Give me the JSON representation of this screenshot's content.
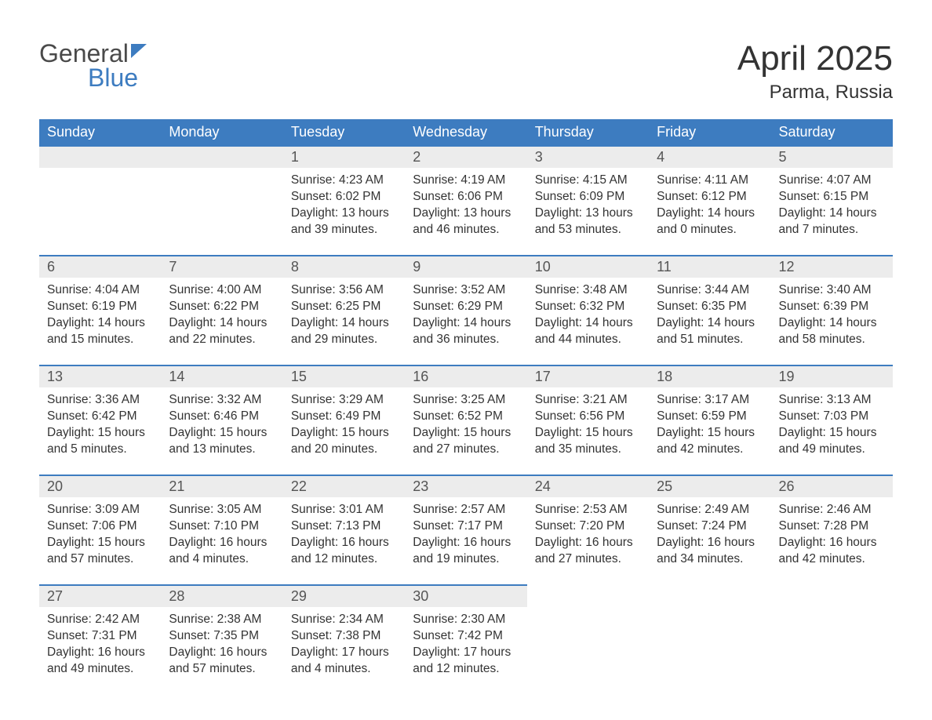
{
  "logo": {
    "line1": "General",
    "line2": "Blue"
  },
  "title": "April 2025",
  "location": "Parma, Russia",
  "colors": {
    "header_bg": "#3d7cc0",
    "header_text": "#ffffff",
    "daynum_bg": "#ececec",
    "daynum_border": "#3d7cc0",
    "text": "#333333",
    "logo_gray": "#4a4a4a",
    "logo_blue": "#3d7cc0"
  },
  "weekdays": [
    "Sunday",
    "Monday",
    "Tuesday",
    "Wednesday",
    "Thursday",
    "Friday",
    "Saturday"
  ],
  "weeks": [
    [
      {
        "empty": true
      },
      {
        "empty": true
      },
      {
        "day": "1",
        "sunrise": "Sunrise: 4:23 AM",
        "sunset": "Sunset: 6:02 PM",
        "daylight1": "Daylight: 13 hours",
        "daylight2": "and 39 minutes."
      },
      {
        "day": "2",
        "sunrise": "Sunrise: 4:19 AM",
        "sunset": "Sunset: 6:06 PM",
        "daylight1": "Daylight: 13 hours",
        "daylight2": "and 46 minutes."
      },
      {
        "day": "3",
        "sunrise": "Sunrise: 4:15 AM",
        "sunset": "Sunset: 6:09 PM",
        "daylight1": "Daylight: 13 hours",
        "daylight2": "and 53 minutes."
      },
      {
        "day": "4",
        "sunrise": "Sunrise: 4:11 AM",
        "sunset": "Sunset: 6:12 PM",
        "daylight1": "Daylight: 14 hours",
        "daylight2": "and 0 minutes."
      },
      {
        "day": "5",
        "sunrise": "Sunrise: 4:07 AM",
        "sunset": "Sunset: 6:15 PM",
        "daylight1": "Daylight: 14 hours",
        "daylight2": "and 7 minutes."
      }
    ],
    [
      {
        "day": "6",
        "sunrise": "Sunrise: 4:04 AM",
        "sunset": "Sunset: 6:19 PM",
        "daylight1": "Daylight: 14 hours",
        "daylight2": "and 15 minutes."
      },
      {
        "day": "7",
        "sunrise": "Sunrise: 4:00 AM",
        "sunset": "Sunset: 6:22 PM",
        "daylight1": "Daylight: 14 hours",
        "daylight2": "and 22 minutes."
      },
      {
        "day": "8",
        "sunrise": "Sunrise: 3:56 AM",
        "sunset": "Sunset: 6:25 PM",
        "daylight1": "Daylight: 14 hours",
        "daylight2": "and 29 minutes."
      },
      {
        "day": "9",
        "sunrise": "Sunrise: 3:52 AM",
        "sunset": "Sunset: 6:29 PM",
        "daylight1": "Daylight: 14 hours",
        "daylight2": "and 36 minutes."
      },
      {
        "day": "10",
        "sunrise": "Sunrise: 3:48 AM",
        "sunset": "Sunset: 6:32 PM",
        "daylight1": "Daylight: 14 hours",
        "daylight2": "and 44 minutes."
      },
      {
        "day": "11",
        "sunrise": "Sunrise: 3:44 AM",
        "sunset": "Sunset: 6:35 PM",
        "daylight1": "Daylight: 14 hours",
        "daylight2": "and 51 minutes."
      },
      {
        "day": "12",
        "sunrise": "Sunrise: 3:40 AM",
        "sunset": "Sunset: 6:39 PM",
        "daylight1": "Daylight: 14 hours",
        "daylight2": "and 58 minutes."
      }
    ],
    [
      {
        "day": "13",
        "sunrise": "Sunrise: 3:36 AM",
        "sunset": "Sunset: 6:42 PM",
        "daylight1": "Daylight: 15 hours",
        "daylight2": "and 5 minutes."
      },
      {
        "day": "14",
        "sunrise": "Sunrise: 3:32 AM",
        "sunset": "Sunset: 6:46 PM",
        "daylight1": "Daylight: 15 hours",
        "daylight2": "and 13 minutes."
      },
      {
        "day": "15",
        "sunrise": "Sunrise: 3:29 AM",
        "sunset": "Sunset: 6:49 PM",
        "daylight1": "Daylight: 15 hours",
        "daylight2": "and 20 minutes."
      },
      {
        "day": "16",
        "sunrise": "Sunrise: 3:25 AM",
        "sunset": "Sunset: 6:52 PM",
        "daylight1": "Daylight: 15 hours",
        "daylight2": "and 27 minutes."
      },
      {
        "day": "17",
        "sunrise": "Sunrise: 3:21 AM",
        "sunset": "Sunset: 6:56 PM",
        "daylight1": "Daylight: 15 hours",
        "daylight2": "and 35 minutes."
      },
      {
        "day": "18",
        "sunrise": "Sunrise: 3:17 AM",
        "sunset": "Sunset: 6:59 PM",
        "daylight1": "Daylight: 15 hours",
        "daylight2": "and 42 minutes."
      },
      {
        "day": "19",
        "sunrise": "Sunrise: 3:13 AM",
        "sunset": "Sunset: 7:03 PM",
        "daylight1": "Daylight: 15 hours",
        "daylight2": "and 49 minutes."
      }
    ],
    [
      {
        "day": "20",
        "sunrise": "Sunrise: 3:09 AM",
        "sunset": "Sunset: 7:06 PM",
        "daylight1": "Daylight: 15 hours",
        "daylight2": "and 57 minutes."
      },
      {
        "day": "21",
        "sunrise": "Sunrise: 3:05 AM",
        "sunset": "Sunset: 7:10 PM",
        "daylight1": "Daylight: 16 hours",
        "daylight2": "and 4 minutes."
      },
      {
        "day": "22",
        "sunrise": "Sunrise: 3:01 AM",
        "sunset": "Sunset: 7:13 PM",
        "daylight1": "Daylight: 16 hours",
        "daylight2": "and 12 minutes."
      },
      {
        "day": "23",
        "sunrise": "Sunrise: 2:57 AM",
        "sunset": "Sunset: 7:17 PM",
        "daylight1": "Daylight: 16 hours",
        "daylight2": "and 19 minutes."
      },
      {
        "day": "24",
        "sunrise": "Sunrise: 2:53 AM",
        "sunset": "Sunset: 7:20 PM",
        "daylight1": "Daylight: 16 hours",
        "daylight2": "and 27 minutes."
      },
      {
        "day": "25",
        "sunrise": "Sunrise: 2:49 AM",
        "sunset": "Sunset: 7:24 PM",
        "daylight1": "Daylight: 16 hours",
        "daylight2": "and 34 minutes."
      },
      {
        "day": "26",
        "sunrise": "Sunrise: 2:46 AM",
        "sunset": "Sunset: 7:28 PM",
        "daylight1": "Daylight: 16 hours",
        "daylight2": "and 42 minutes."
      }
    ],
    [
      {
        "day": "27",
        "sunrise": "Sunrise: 2:42 AM",
        "sunset": "Sunset: 7:31 PM",
        "daylight1": "Daylight: 16 hours",
        "daylight2": "and 49 minutes."
      },
      {
        "day": "28",
        "sunrise": "Sunrise: 2:38 AM",
        "sunset": "Sunset: 7:35 PM",
        "daylight1": "Daylight: 16 hours",
        "daylight2": "and 57 minutes."
      },
      {
        "day": "29",
        "sunrise": "Sunrise: 2:34 AM",
        "sunset": "Sunset: 7:38 PM",
        "daylight1": "Daylight: 17 hours",
        "daylight2": "and 4 minutes."
      },
      {
        "day": "30",
        "sunrise": "Sunrise: 2:30 AM",
        "sunset": "Sunset: 7:42 PM",
        "daylight1": "Daylight: 17 hours",
        "daylight2": "and 12 minutes."
      },
      {
        "empty": true,
        "noBorder": true
      },
      {
        "empty": true,
        "noBorder": true
      },
      {
        "empty": true,
        "noBorder": true
      }
    ]
  ]
}
